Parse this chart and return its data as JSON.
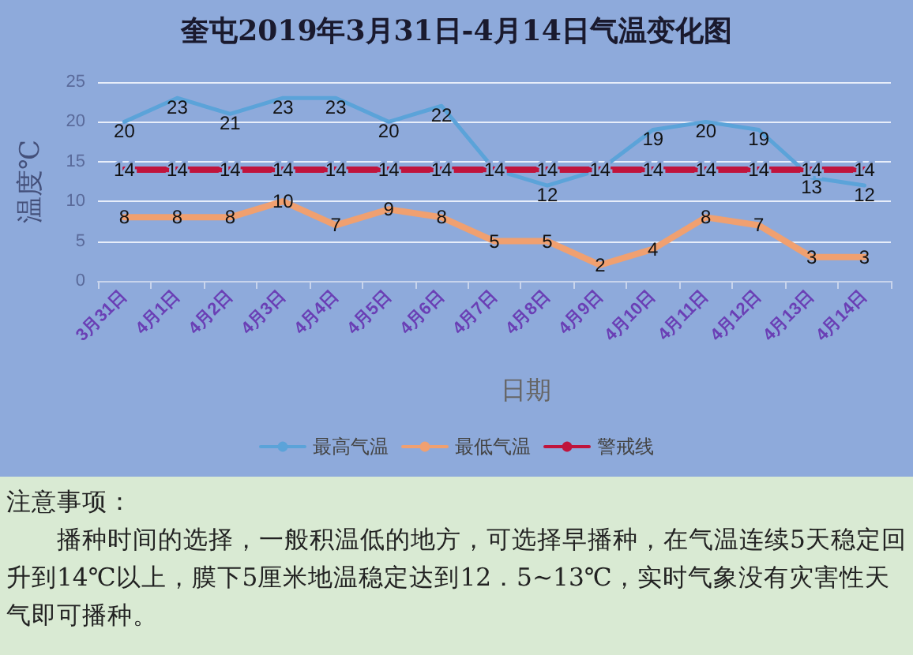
{
  "chart_data": {
    "type": "line",
    "title": "奎屯2019年3月31日-4月14日气温变化图",
    "xlabel": "日期",
    "ylabel": "温度℃",
    "categories": [
      "3月31日",
      "4月1日",
      "4月2日",
      "4月3日",
      "4月4日",
      "4月5日",
      "4月6日",
      "4月7日",
      "4月8日",
      "4月9日",
      "4月10日",
      "4月11日",
      "4月12日",
      "4月13日",
      "4月14日"
    ],
    "series": [
      {
        "name": "最高气温",
        "color": "#5ba3d9",
        "values": [
          20,
          23,
          21,
          23,
          23,
          20,
          22,
          14,
          12,
          14,
          19,
          20,
          19,
          13,
          12
        ],
        "value_labels": [
          "20",
          "23",
          "21",
          "23",
          "23",
          "20",
          "22",
          null,
          "12",
          null,
          "19",
          "20",
          "19",
          "13",
          "12"
        ]
      },
      {
        "name": "最低气温",
        "color": "#f0a070",
        "values": [
          8,
          8,
          8,
          10,
          7,
          9,
          8,
          5,
          5,
          2,
          4,
          8,
          7,
          3,
          3
        ],
        "value_labels": [
          "8",
          "8",
          "8",
          "10",
          "7",
          "9",
          "8",
          "5",
          "5",
          "2",
          "4",
          "8",
          "7",
          "3",
          "3"
        ]
      },
      {
        "name": "警戒线",
        "color": "#c0143c",
        "values": [
          14,
          14,
          14,
          14,
          14,
          14,
          14,
          14,
          14,
          14,
          14,
          14,
          14,
          14,
          14
        ],
        "value_labels": [
          "14",
          "14",
          "14",
          "14",
          "14",
          "14",
          "14",
          "14",
          "14",
          "14",
          "14",
          "14",
          "14",
          "14",
          "14"
        ]
      }
    ],
    "ylim": [
      0,
      25
    ],
    "yticks": [
      0,
      5,
      10,
      15,
      20,
      25
    ],
    "grid": "y",
    "legend": "bottom",
    "marker": "none",
    "line_style": "solid",
    "annotations": [
      "注意事项：",
      "播种时间的选择，一般积温低的地方，可选择早播种，在气温连续5天稳定回升到14℃以上，膜下5厘米地温稳定达到12．5~13℃，实时气象没有灾害性天气即可播种。"
    ]
  }
}
